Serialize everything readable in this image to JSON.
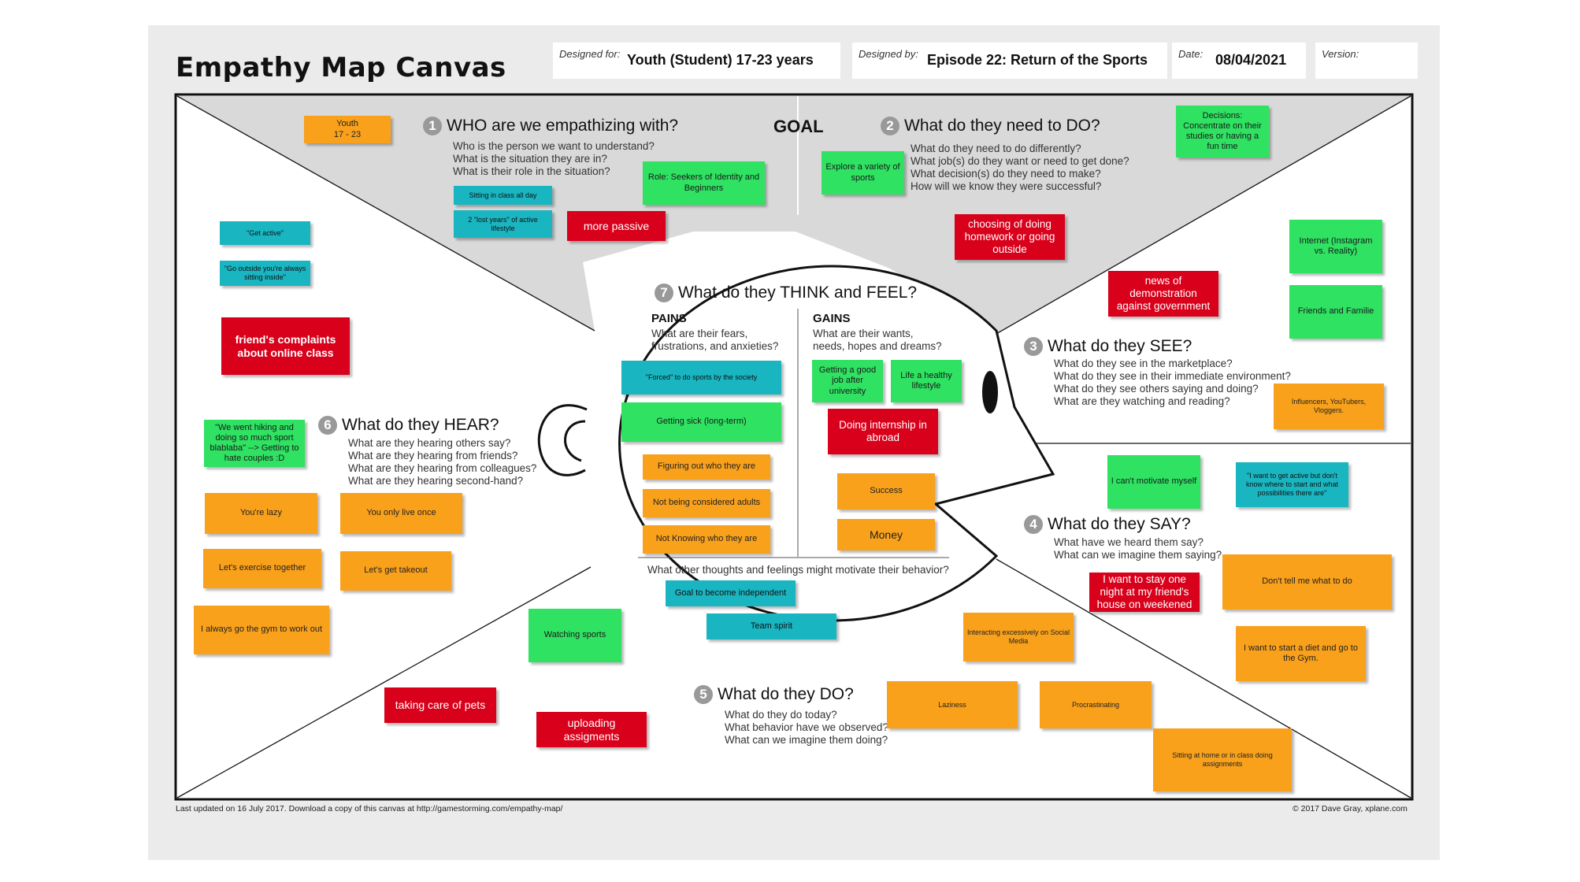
{
  "header": {
    "title": "Empathy Map Canvas",
    "designed_for_label": "Designed for:",
    "designed_for_value": "Youth (Student) 17-23 years",
    "designed_by_label": "Designed by:",
    "designed_by_value": "Episode 22: Return of the Sports",
    "date_label": "Date:",
    "date_value": "08/04/2021",
    "version_label": "Version:"
  },
  "goal": "GOAL",
  "sections": {
    "who": {
      "num": "1",
      "title": "WHO are we empathizing with?",
      "questions": [
        "Who is the person we want to understand?",
        "What is the situation they are in?",
        "What is their role in the situation?"
      ]
    },
    "need": {
      "num": "2",
      "title": "What do they need to DO?",
      "questions": [
        "What do they need to do differently?",
        "What job(s) do they want or need to get done?",
        "What decision(s) do they need to make?",
        "How will we know they were successful?"
      ]
    },
    "see": {
      "num": "3",
      "title": "What do they SEE?",
      "questions": [
        "What do they see in the marketplace?",
        "What do they see in their immediate environment?",
        "What do they see others saying and doing?",
        "What are they watching and reading?"
      ]
    },
    "say": {
      "num": "4",
      "title": "What do they SAY?",
      "questions": [
        "What have we heard them say?",
        "What can we imagine them saying?"
      ]
    },
    "do": {
      "num": "5",
      "title": "What do they DO?",
      "questions": [
        "What do they do today?",
        "What behavior have we observed?",
        "What can we imagine them doing?"
      ]
    },
    "hear": {
      "num": "6",
      "title": "What do they HEAR?",
      "questions": [
        "What are they hearing others say?",
        "What are they hearing from friends?",
        "What are they hearing from colleagues?",
        "What are they hearing second-hand?"
      ]
    },
    "think": {
      "num": "7",
      "title": "What do they THINK and FEEL?"
    }
  },
  "pains": {
    "title": "PAINS",
    "questions": [
      "What are their fears,",
      "frustrations, and anxieties?"
    ]
  },
  "gains": {
    "title": "GAINS",
    "questions": [
      "What are their wants,",
      "needs, hopes and dreams?"
    ]
  },
  "motivate_question": "What other thoughts and feelings might motivate their behavior?",
  "notes": {
    "n1": "Youth\n17 - 23",
    "n2": "Sitting in class all day",
    "n3": "2 \"lost years\" of active lifestyle",
    "n4": "Role: Seekers of Identity and Beginners",
    "n5": "more passive",
    "n6": "Explore a variety of sports",
    "n7": "Decisions: Concentrate on their studies or having a fun time",
    "n8": "choosing of doing homework or going outside",
    "n9": "\"Get active\"",
    "n10": "\"Go outside you're always sitting inside\"",
    "n11": "friend's complaints about online class",
    "n12": "Internet (Instagram vs. Reality)",
    "n13": "news of demonstration against government",
    "n14": "Friends and Familie",
    "n15": "Influencers, YouTubers, Vloggers.",
    "n16": "\"We went hiking and doing so much sport blablaba\" --> Getting to hate couples :D",
    "n17": "You're lazy",
    "n18": "You only live once",
    "n19": "Let's exercise together",
    "n20": "Let's get takeout",
    "n21": "I always go the gym to work out",
    "n22": "\"Forced\" to do sports by the society",
    "n23": "Getting sick (long-term)",
    "n24": "Figuring out who they are",
    "n25": "Not being considered adults",
    "n26": "Not Knowing who they are",
    "n27": "Getting a good job after university",
    "n28": "Life a healthy lifestyle",
    "n29": "Doing internship in abroad",
    "n30": "Success",
    "n31": "Money",
    "n32": "Goal to become independent",
    "n33": "Team spirit",
    "n34": "I can't motivate myself",
    "n35": "\"I want to get active but don't know where to start and what possibilities there are\"",
    "n36": "I want to stay one night at my friend's house on weekened",
    "n37": "Don't tell me what to do",
    "n38": "I want to start a diet and go to the Gym.",
    "n39": "Watching sports",
    "n40": "Interacting excessively on Social Media",
    "n41": "taking care of pets",
    "n42": "uploading assigments",
    "n43": "Laziness",
    "n44": "Procrastinating",
    "n45": "Sitting at home or in class doing assignments"
  },
  "colors": {
    "orange": "#f9a11b",
    "green": "#2fe262",
    "teal": "#19b5c1",
    "red": "#d8001b",
    "top_band": "#d9d9d9"
  },
  "footer": {
    "left": "Last updated on 16 July 2017. Download a copy of this canvas at http://gamestorming.com/empathy-map/",
    "right": "© 2017 Dave Gray, xplane.com"
  }
}
